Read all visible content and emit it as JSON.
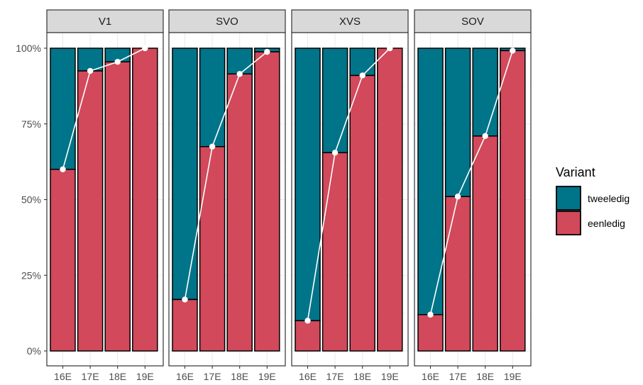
{
  "chart_data": {
    "type": "bar",
    "stacked": true,
    "position": "fill",
    "facets": [
      {
        "label": "V1",
        "eenledig": [
          0.6,
          0.925,
          0.955,
          1.0
        ]
      },
      {
        "label": "SVO",
        "eenledig": [
          0.17,
          0.675,
          0.915,
          0.988
        ]
      },
      {
        "label": "XVS",
        "eenledig": [
          0.1,
          0.655,
          0.91,
          1.0
        ]
      },
      {
        "label": "SOV",
        "eenledig": [
          0.12,
          0.51,
          0.71,
          0.992
        ]
      }
    ],
    "categories": [
      "16E",
      "17E",
      "18E",
      "19E"
    ],
    "series": [
      {
        "name": "tweeledig",
        "color": "#007489"
      },
      {
        "name": "eenledig",
        "color": "#D1495B"
      }
    ],
    "overlay": {
      "type": "line",
      "series": "eenledig",
      "color": "#ffffff"
    },
    "y_ticks": [
      "0%",
      "25%",
      "50%",
      "75%",
      "100%"
    ],
    "ylim": [
      0,
      1
    ],
    "legend": {
      "title": "Variant",
      "position": "right"
    },
    "grid": true,
    "xlabel": "",
    "ylabel": ""
  }
}
